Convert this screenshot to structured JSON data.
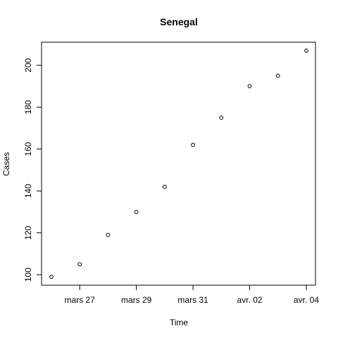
{
  "chart_data": {
    "type": "scatter",
    "title": "Senegal",
    "xlabel": "Time",
    "ylabel": "Cases",
    "x": [
      "mars 26",
      "mars 27",
      "mars 28",
      "mars 29",
      "mars 30",
      "mars 31",
      "avr. 01",
      "avr. 02",
      "avr. 03",
      "avr. 04"
    ],
    "values": [
      99,
      105,
      119,
      130,
      142,
      162,
      175,
      190,
      195,
      207
    ],
    "x_ticks": [
      {
        "label": "mars 27",
        "at": "mars 27"
      },
      {
        "label": "mars 29",
        "at": "mars 29"
      },
      {
        "label": "mars 31",
        "at": "mars 31"
      },
      {
        "label": "avr. 02",
        "at": "avr. 02"
      },
      {
        "label": "avr. 04",
        "at": "avr. 04"
      }
    ],
    "y_ticks": [
      100,
      120,
      140,
      160,
      180,
      200
    ],
    "ylim": [
      95,
      211
    ],
    "grid": false,
    "legend": "none",
    "colors": {
      "point": "#000000",
      "axis": "#000000",
      "background": "#ffffff"
    }
  }
}
